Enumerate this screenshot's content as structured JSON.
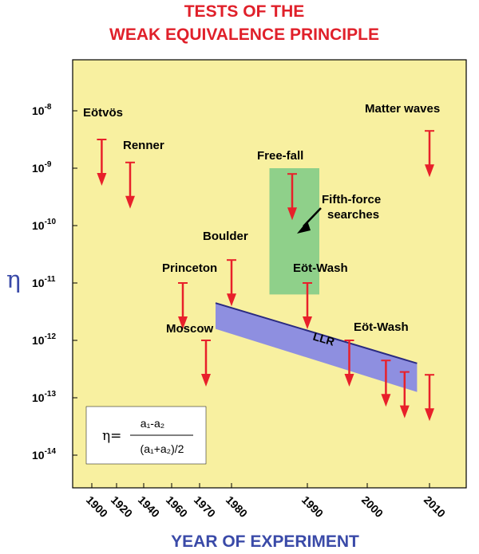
{
  "chart_data": {
    "type": "scatter",
    "title_lines": [
      "TESTS OF THE",
      "WEAK EQUIVALENCE PRINCIPLE"
    ],
    "xlabel": "YEAR OF EXPERIMENT",
    "ylabel": "η",
    "y_scale": "log",
    "ylim_exponent": [
      -14.4,
      -7.6
    ],
    "y_ticks": [
      {
        "base": "10",
        "exp": "-8",
        "value": -8
      },
      {
        "base": "10",
        "exp": "-9",
        "value": -9
      },
      {
        "base": "10",
        "exp": "-10",
        "value": -10
      },
      {
        "base": "10",
        "exp": "-11",
        "value": -11
      },
      {
        "base": "10",
        "exp": "-12",
        "value": -12
      },
      {
        "base": "10",
        "exp": "-13",
        "value": -13
      },
      {
        "base": "10",
        "exp": "-14",
        "value": -14
      }
    ],
    "x_ticks": [
      "1900",
      "1920",
      "1940",
      "1960",
      "1970",
      "1980",
      "1990",
      "2000",
      "2010"
    ],
    "upper_limits": [
      {
        "label": "Eötvös",
        "year": 1908,
        "log_eta": -8.5
      },
      {
        "label": "Renner",
        "year": 1930,
        "log_eta": -8.9
      },
      {
        "label": "Princeton",
        "year": 1964,
        "log_eta": -11.0
      },
      {
        "label": "Moscow",
        "year": 1972,
        "log_eta": -12.0
      },
      {
        "label": "Boulder",
        "year": 1980,
        "log_eta": -10.6
      },
      {
        "label": "Free-fall",
        "year": 1988,
        "log_eta": -9.1
      },
      {
        "label": "Eöt-Wash",
        "year": 1990,
        "log_eta": -11.0
      },
      {
        "label": "Eöt-Wash",
        "year": 1997,
        "log_eta": -12.0
      },
      {
        "label": "",
        "year": 2003,
        "log_eta": -12.35
      },
      {
        "label": "",
        "year": 2006,
        "log_eta": -12.55
      },
      {
        "label": "",
        "year": 2010,
        "log_eta": -12.6
      },
      {
        "label": "Matter waves",
        "year": 2010,
        "log_eta": -8.35
      }
    ],
    "regions": [
      {
        "label": "Fifth-force searches",
        "year_range": [
          1985,
          1992
        ],
        "log_eta_range": [
          -11.2,
          -9.0
        ],
        "color": "#8fd08a"
      },
      {
        "label": "LLR",
        "year_start": 1975,
        "year_end": 2008,
        "log_eta_top_start": -11.35,
        "log_eta_top_end": -12.4,
        "log_eta_bottom_start": -11.8,
        "log_eta_bottom_end": -12.9,
        "color": "#8e8fe0"
      }
    ],
    "formula": {
      "lhs": "η=",
      "numerator": "a₁-a₂",
      "denominator": "(a₁+a₂)/2"
    },
    "grid": false,
    "colors": {
      "plot_background": "#f8f0a0",
      "arrow": "#e8202a",
      "title": "#e0202a",
      "axis_title": "#3a4aa8",
      "llr_edge": "#2a2a80"
    }
  }
}
